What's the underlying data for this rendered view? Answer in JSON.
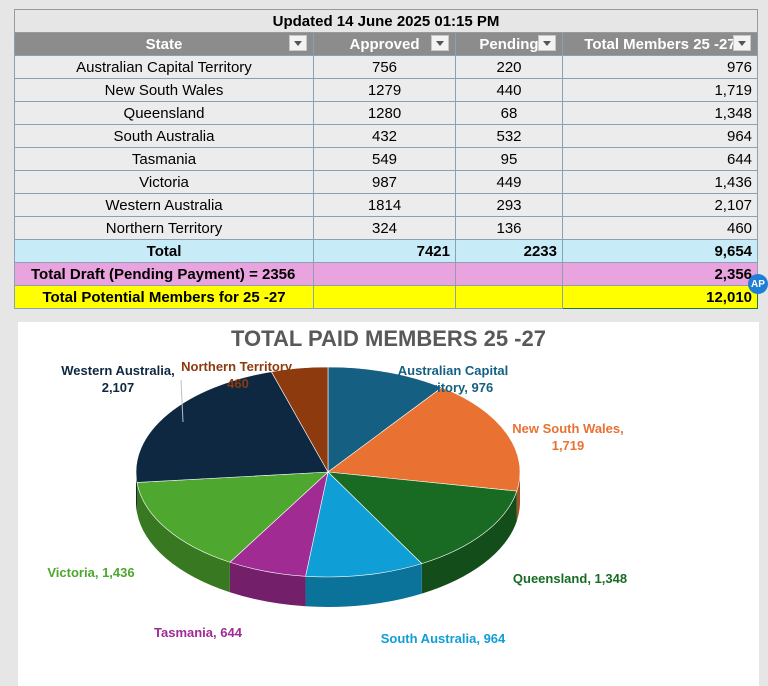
{
  "table": {
    "updated": "Updated 14 June 2025 01:15 PM",
    "headers": [
      "State",
      "Approved",
      "Pending",
      "Total Members 25 -27"
    ],
    "rows": [
      {
        "state": "Australian Capital Territory",
        "approved": "756",
        "pending": "220",
        "total": "976"
      },
      {
        "state": "New South Wales",
        "approved": "1279",
        "pending": "440",
        "total": "1,719"
      },
      {
        "state": "Queensland",
        "approved": "1280",
        "pending": "68",
        "total": "1,348"
      },
      {
        "state": "South Australia",
        "approved": "432",
        "pending": "532",
        "total": "964"
      },
      {
        "state": "Tasmania",
        "approved": "549",
        "pending": "95",
        "total": "644"
      },
      {
        "state": "Victoria",
        "approved": "987",
        "pending": "449",
        "total": "1,436"
      },
      {
        "state": "Western Australia",
        "approved": "1814",
        "pending": "293",
        "total": "2,107"
      },
      {
        "state": "Northern Territory",
        "approved": "324",
        "pending": "136",
        "total": "460"
      }
    ],
    "total_row": {
      "label": "Total",
      "approved": "7421",
      "pending": "2233",
      "total": "9,654"
    },
    "draft_row": {
      "label": "Total Draft (Pending Payment) = 2356",
      "total": "2,356"
    },
    "potential_row": {
      "label": "Total Potential Members for 25 -27",
      "total": "12,010"
    },
    "avatar_initials": "AP"
  },
  "chart_data": {
    "type": "pie",
    "title": "TOTAL PAID MEMBERS 25 -27",
    "slices": [
      {
        "label": "Australian Capital Territory",
        "value": 976,
        "value_label": "976",
        "color": "#156082"
      },
      {
        "label": "New South Wales",
        "value": 1719,
        "value_label": "1,719",
        "color": "#e97132"
      },
      {
        "label": "Queensland",
        "value": 1348,
        "value_label": "1,348",
        "color": "#196b24"
      },
      {
        "label": "South Australia",
        "value": 964,
        "value_label": "964",
        "color": "#0f9ed5"
      },
      {
        "label": "Tasmania",
        "value": 644,
        "value_label": "644",
        "color": "#a02b93"
      },
      {
        "label": "Victoria",
        "value": 1436,
        "value_label": "1,436",
        "color": "#4ea72e"
      },
      {
        "label": "Western Australia",
        "value": 2107,
        "value_label": "2,107",
        "color": "#0e2841"
      },
      {
        "label": "Northern Territory",
        "value": 460,
        "value_label": "460",
        "color": "#8d3a0f"
      }
    ],
    "label_colors": {
      "Australian Capital Territory": "#156082",
      "New South Wales": "#e97132",
      "Queensland": "#196b24",
      "South Australia": "#0f9ed5",
      "Tasmania": "#a02b93",
      "Victoria": "#4ea72e",
      "Western Australia": "#0e2841",
      "Northern Territory": "#8d3a0f"
    }
  }
}
